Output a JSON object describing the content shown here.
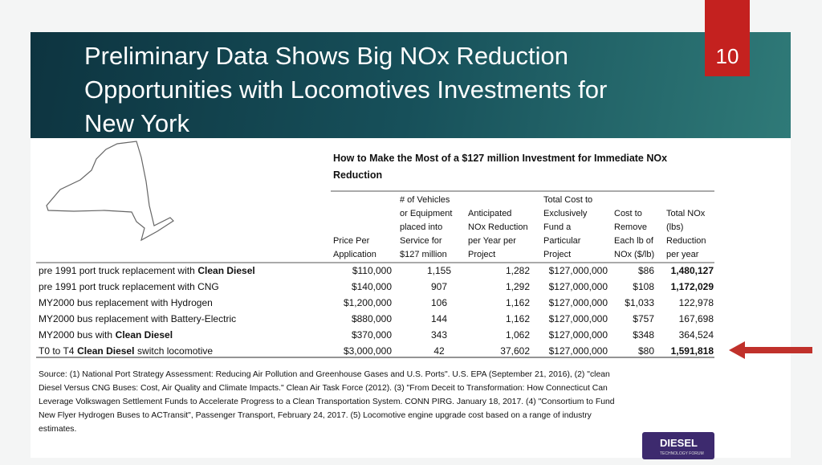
{
  "slide_number": "10",
  "title": [
    "Preliminary Data Shows Big NOx Reduction",
    "Opportunities with Locomotives Investments for",
    "New York"
  ],
  "table": {
    "title": [
      "How to Make the Most of a $127 million Investment for Immediate NOx",
      "Reduction"
    ],
    "headers": [
      [
        "Price Per",
        "Application"
      ],
      [
        "# of Vehicles",
        "or Equipment",
        "placed into",
        "Service for",
        "$127 million"
      ],
      [
        "Anticipated",
        "NOx Reduction",
        "per Year per",
        "Project"
      ],
      [
        "Total Cost to",
        "Exclusively",
        "Fund a",
        "Particular",
        "Project"
      ],
      [
        "Cost to",
        "Remove",
        "Each lb of",
        "NOx ($/lb)"
      ],
      [
        "Total NOx",
        "(lbs)",
        "Reduction",
        "per year"
      ]
    ],
    "rows": [
      {
        "label": [
          {
            "text": "pre 1991 port truck replacement with"
          },
          {
            "text": "Clean Diesel",
            "bold": true
          }
        ],
        "cells": [
          "$110,000",
          "1,155",
          "1,282",
          "$127,000,000",
          "$86",
          "1,480,127"
        ],
        "total_bold": true
      },
      {
        "label": [
          {
            "text": "pre 1991 port truck replacement with CNG"
          }
        ],
        "cells": [
          "$140,000",
          "907",
          "1,292",
          "$127,000,000",
          "$108",
          "1,172,029"
        ],
        "total_bold": true
      },
      {
        "label": [
          {
            "text": "MY2000 bus replacement with Hydrogen"
          }
        ],
        "cells": [
          "$1,200,000",
          "106",
          "1,162",
          "$127,000,000",
          "$1,033",
          "122,978"
        ]
      },
      {
        "label": [
          {
            "text": "MY2000 bus replacement with Battery-Electric"
          }
        ],
        "cells": [
          "$880,000",
          "144",
          "1,162",
          "$127,000,000",
          "$757",
          "167,698"
        ]
      },
      {
        "label": [
          {
            "text": "MY2000 bus with"
          },
          {
            "text": "Clean Diesel",
            "bold": true
          }
        ],
        "cells": [
          "$370,000",
          "343",
          "1,062",
          "$127,000,000",
          "$348",
          "364,524"
        ]
      },
      {
        "label": [
          {
            "text": "T0 to T4"
          },
          {
            "text": "Clean Diesel",
            "bold": true
          },
          {
            "text": "switch locomotive"
          }
        ],
        "cells": [
          "$3,000,000",
          "42",
          "37,602",
          "$127,000,000",
          "$80",
          "1,591,818"
        ],
        "total_bold": true
      }
    ]
  },
  "source": [
    "Source: (1) National Port Strategy Assessment: Reducing Air Pollution and Greenhouse Gases and U.S. Ports\". U.S. EPA (September 21, 2016), (2) \"clean",
    "Diesel Versus CNG Buses: Cost, Air Quality and Climate Impacts.\" Clean Air Task Force (2012). (3) \"From Deceit to Transformation: How Connecticut Can",
    "Leverage Volkswagen Settlement Funds to Accelerate Progress to a Clean Transportation System. CONN PIRG. January 18, 2017. (4) \"Consortium to Fund",
    "New Flyer Hydrogen Buses to ACTransit\", Passenger Transport, February 24, 2017. (5) Locomotive engine upgrade cost based on a range of industry",
    "estimates."
  ],
  "logo": {
    "name": "DIESEL",
    "tagline": "TECHNOLOGY FORUM"
  }
}
